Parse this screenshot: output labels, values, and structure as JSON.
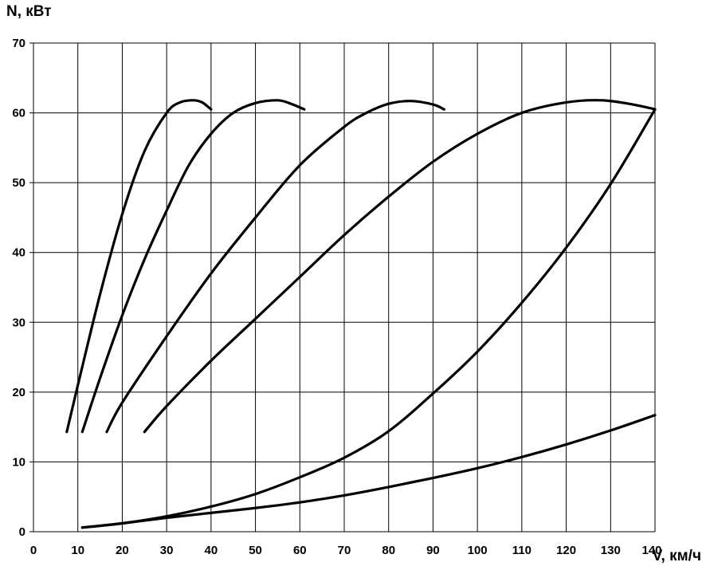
{
  "chart_data": {
    "type": "line",
    "title": "",
    "xlabel": "V, км/ч",
    "ylabel": "N, кВт",
    "xlim": [
      0,
      140
    ],
    "ylim": [
      0,
      70
    ],
    "xticks": [
      0,
      10,
      20,
      30,
      40,
      50,
      60,
      70,
      80,
      90,
      100,
      110,
      120,
      130,
      140
    ],
    "yticks": [
      0,
      10,
      20,
      30,
      40,
      50,
      60,
      70
    ],
    "grid": true,
    "legend": "none",
    "series": [
      {
        "x": [
          7.5,
          10,
          15,
          20,
          25,
          30,
          33,
          36,
          38,
          40
        ],
        "y": [
          14.3,
          21,
          34,
          45.5,
          54.5,
          60,
          61.5,
          61.8,
          61.5,
          60.5
        ]
      },
      {
        "x": [
          11,
          15,
          20,
          25,
          30,
          35,
          40,
          45,
          50,
          55,
          58,
          61
        ],
        "y": [
          14.3,
          22,
          31,
          39,
          46,
          52.5,
          57,
          60,
          61.4,
          61.8,
          61.3,
          60.5
        ]
      },
      {
        "x": [
          16.5,
          20,
          30,
          40,
          50,
          60,
          70,
          75,
          80,
          85,
          90,
          92.5
        ],
        "y": [
          14.3,
          18.5,
          28,
          37,
          45,
          52.5,
          58,
          60,
          61.3,
          61.7,
          61.2,
          60.5
        ]
      },
      {
        "x": [
          25,
          30,
          40,
          50,
          60,
          70,
          80,
          90,
          100,
          110,
          120,
          128,
          135,
          140
        ],
        "y": [
          14.3,
          18,
          24.5,
          30.5,
          36.5,
          42.5,
          48,
          53,
          57,
          60,
          61.5,
          61.8,
          61.2,
          60.5
        ]
      },
      {
        "x": [
          11,
          20,
          30,
          40,
          50,
          60,
          70,
          80,
          90,
          100,
          110,
          120,
          130,
          140
        ],
        "y": [
          0.6,
          1.2,
          2.2,
          3.6,
          5.4,
          7.8,
          10.6,
          14.4,
          19.8,
          25.8,
          32.8,
          40.7,
          49.8,
          60.5
        ]
      },
      {
        "x": [
          11,
          20,
          30,
          40,
          50,
          60,
          70,
          80,
          90,
          100,
          110,
          120,
          130,
          140
        ],
        "y": [
          0.6,
          1.2,
          2,
          2.7,
          3.4,
          4.2,
          5.2,
          6.4,
          7.7,
          9.1,
          10.7,
          12.5,
          14.5,
          16.7
        ]
      }
    ]
  }
}
